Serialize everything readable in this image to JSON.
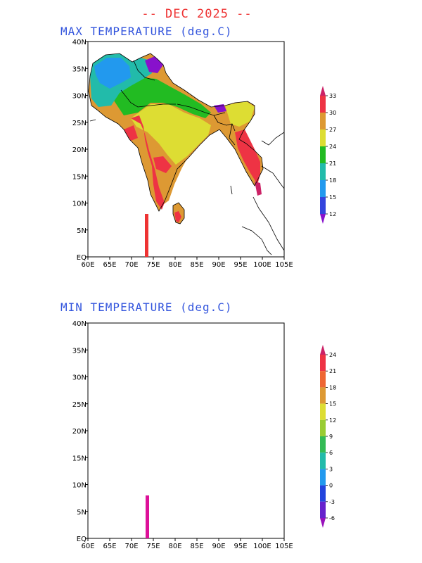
{
  "title": "-- DEC 2025 --",
  "panels": [
    {
      "id": "max",
      "title": "MAX TEMPERATURE (deg.C)",
      "legend": {
        "levels": [
          "33",
          "30",
          "27",
          "24",
          "21",
          "18",
          "15",
          "12"
        ],
        "colors": [
          "#cc2266",
          "#ee3344",
          "#dd9933",
          "#dddd33",
          "#22bb22",
          "#22bbaa",
          "#2299ee",
          "#3344dd",
          "#8811cc"
        ]
      },
      "marker_color": "#ee3333"
    },
    {
      "id": "min",
      "title": "MIN TEMPERATURE (deg.C)",
      "legend": {
        "levels": [
          "24",
          "21",
          "18",
          "15",
          "12",
          "9",
          "6",
          "3",
          "0",
          "-3",
          "-6"
        ],
        "colors": [
          "#cc2266",
          "#ee3344",
          "#ee6633",
          "#dd9933",
          "#dddd33",
          "#99cc33",
          "#33bb55",
          "#22bbaa",
          "#2299ee",
          "#2244dd",
          "#6622cc",
          "#9911bb"
        ]
      },
      "marker_color": "#dd1199"
    }
  ],
  "axes": {
    "x_ticks": [
      "60E",
      "65E",
      "70E",
      "75E",
      "80E",
      "85E",
      "90E",
      "95E",
      "100E",
      "105E"
    ],
    "y_ticks": [
      "EQ",
      "5N",
      "10N",
      "15N",
      "20N",
      "25N",
      "30N",
      "35N",
      "40N"
    ]
  }
}
